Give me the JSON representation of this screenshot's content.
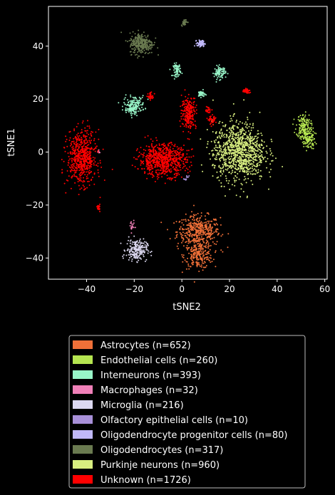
{
  "chart_data": {
    "type": "scatter",
    "title": "",
    "xlabel": "tSNE2",
    "ylabel": "tSNE1",
    "xlim": [
      -56,
      61
    ],
    "ylim": [
      -48,
      55
    ],
    "xticks": [
      -40,
      -20,
      0,
      20,
      40,
      60
    ],
    "yticks": [
      -40,
      -20,
      0,
      20,
      40
    ],
    "grid": false,
    "legend_position": "bottom-center",
    "series": [
      {
        "name": "Astrocytes (n=652)",
        "color": "#f07038",
        "clusters": [
          {
            "x": 7,
            "y": -30,
            "sx": 4.5,
            "sy": 3,
            "n": 420
          },
          {
            "x": 7,
            "y": -39,
            "sx": 3,
            "sy": 2.5,
            "n": 232
          }
        ]
      },
      {
        "name": "Endothelial cells (n=260)",
        "color": "#b5e550",
        "clusters": [
          {
            "x": 51,
            "y": 10,
            "sx": 1.5,
            "sy": 2.2,
            "n": 130
          },
          {
            "x": 53,
            "y": 5,
            "sx": 1.5,
            "sy": 2,
            "n": 130
          }
        ]
      },
      {
        "name": "Interneurons (n=393)",
        "color": "#98f5c8",
        "clusters": [
          {
            "x": -20,
            "y": 18,
            "sx": 2.2,
            "sy": 1.6,
            "n": 130
          },
          {
            "x": -2,
            "y": 31,
            "sx": 0.8,
            "sy": 1.2,
            "n": 70
          },
          {
            "x": 16,
            "y": 30,
            "sx": 1.2,
            "sy": 1.2,
            "n": 90
          },
          {
            "x": 8,
            "y": 22,
            "sx": 0.8,
            "sy": 0.6,
            "n": 40
          },
          {
            "x": -21,
            "y": 16,
            "sx": 1,
            "sy": 0.6,
            "n": 63
          }
        ]
      },
      {
        "name": "Macrophages (n=32)",
        "color": "#f080b8",
        "clusters": [
          {
            "x": -21,
            "y": -28,
            "sx": 0.5,
            "sy": 1.2,
            "n": 20
          },
          {
            "x": -35,
            "y": 0,
            "sx": 0.3,
            "sy": 0.3,
            "n": 12
          }
        ]
      },
      {
        "name": "Microglia (n=216)",
        "color": "#dcd8f0",
        "clusters": [
          {
            "x": -19,
            "y": -37,
            "sx": 2.2,
            "sy": 2,
            "n": 216
          }
        ]
      },
      {
        "name": "Olfactory epithelial cells (n=10)",
        "color": "#a890d8",
        "clusters": [
          {
            "x": 2,
            "y": -10,
            "sx": 0.5,
            "sy": 0.5,
            "n": 10
          }
        ]
      },
      {
        "name": "Oligodendrocyte progenitor cells (n=80)",
        "color": "#c0b8f8",
        "clusters": [
          {
            "x": 8,
            "y": 41,
            "sx": 0.8,
            "sy": 0.6,
            "n": 80
          }
        ]
      },
      {
        "name": "Oligodendrocytes (n=317)",
        "color": "#6a7a50",
        "clusters": [
          {
            "x": -17,
            "y": 41,
            "sx": 2.5,
            "sy": 2,
            "n": 280
          },
          {
            "x": 1,
            "y": 49,
            "sx": 0.6,
            "sy": 0.6,
            "n": 37
          }
        ]
      },
      {
        "name": "Purkinje neurons (n=960)",
        "color": "#d8ee80",
        "clusters": [
          {
            "x": 24,
            "y": 0,
            "sx": 5.5,
            "sy": 5.5,
            "n": 960
          }
        ]
      },
      {
        "name": "Unknown (n=1726)",
        "color": "#ff0000",
        "clusters": [
          {
            "x": -42,
            "y": -2,
            "sx": 3,
            "sy": 5,
            "n": 600
          },
          {
            "x": -8,
            "y": -3,
            "sx": 5,
            "sy": 3,
            "n": 700
          },
          {
            "x": 3,
            "y": 15,
            "sx": 1.5,
            "sy": 3,
            "n": 250
          },
          {
            "x": -13,
            "y": 21,
            "sx": 0.6,
            "sy": 0.6,
            "n": 40
          },
          {
            "x": 27,
            "y": 23,
            "sx": 0.8,
            "sy": 0.5,
            "n": 50
          },
          {
            "x": 13,
            "y": 12,
            "sx": 0.8,
            "sy": 0.8,
            "n": 40
          },
          {
            "x": -35,
            "y": -21,
            "sx": 0.3,
            "sy": 0.6,
            "n": 20
          },
          {
            "x": 11,
            "y": 16,
            "sx": 0.6,
            "sy": 0.6,
            "n": 26
          }
        ]
      }
    ]
  }
}
